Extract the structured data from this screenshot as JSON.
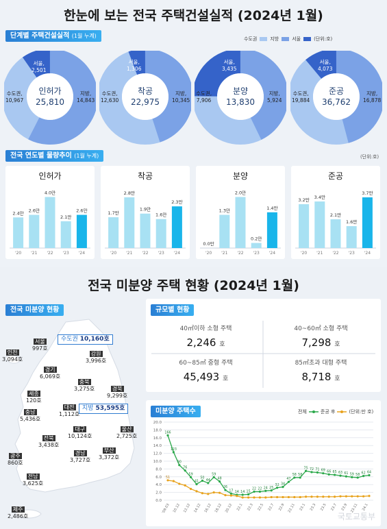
{
  "top_title": "한눈에 보는 전국 주택건설실적 (2024년 1월)",
  "stage_tag": "단계별 주택건설실적",
  "stage_tag_note": "(1월 누계)",
  "legend": {
    "items": [
      "수도권",
      "지방",
      "서울"
    ],
    "unit": "(단위:호)"
  },
  "colors": {
    "sudo": "#a9c8f1",
    "jibang": "#7ba2e6",
    "seoul": "#3563c9"
  },
  "chart_data": [
    {
      "type": "pie",
      "title": "인허가",
      "total": "25,810",
      "slices": [
        {
          "name": "수도권",
          "label": "수도권,",
          "value": 10967,
          "display": "10,967"
        },
        {
          "name": "지방",
          "label": "지방,",
          "value": 14843,
          "display": "14,843"
        },
        {
          "name": "서울",
          "label": "서울,",
          "value": 2501,
          "display": "2,501"
        }
      ]
    },
    {
      "type": "pie",
      "title": "착공",
      "total": "22,975",
      "slices": [
        {
          "name": "수도권",
          "label": "수도권,",
          "value": 12630,
          "display": "12,630"
        },
        {
          "name": "지방",
          "label": "지방,",
          "value": 10345,
          "display": "10,345"
        },
        {
          "name": "서울",
          "label": "서울,",
          "value": 1306,
          "display": "1,306"
        }
      ]
    },
    {
      "type": "pie",
      "title": "분양",
      "total": "13,830",
      "slices": [
        {
          "name": "수도권",
          "label": "수도권,",
          "value": 7906,
          "display": "7,906"
        },
        {
          "name": "지방",
          "label": "지방,",
          "value": 5924,
          "display": "5,924"
        },
        {
          "name": "서울",
          "label": "서울,",
          "value": 3435,
          "display": "3,435"
        }
      ]
    },
    {
      "type": "pie",
      "title": "준공",
      "total": "36,762",
      "slices": [
        {
          "name": "수도권",
          "label": "수도권,",
          "value": 19884,
          "display": "19,884"
        },
        {
          "name": "지방",
          "label": "지방,",
          "value": 16878,
          "display": "16,878"
        },
        {
          "name": "서울",
          "label": "서울,",
          "value": 4073,
          "display": "4,073"
        }
      ]
    },
    {
      "type": "bar",
      "title": "인허가",
      "categories": [
        "'20",
        "'21",
        "'22",
        "'23",
        "'24"
      ],
      "values": [
        2.4,
        2.6,
        4.0,
        2.1,
        2.6
      ],
      "value_labels": [
        "2.4만",
        "2.6만",
        "4.0만",
        "2.1만",
        "2.6만"
      ],
      "ylim": [
        0,
        4.4
      ]
    },
    {
      "type": "bar",
      "title": "착공",
      "categories": [
        "'20",
        "'21",
        "'22",
        "'23",
        "'24"
      ],
      "values": [
        1.7,
        2.8,
        1.9,
        1.6,
        2.3
      ],
      "value_labels": [
        "1.7만",
        "2.8만",
        "1.9만",
        "1.6만",
        "2.3만"
      ],
      "ylim": [
        0,
        3.1
      ]
    },
    {
      "type": "bar",
      "title": "분양",
      "categories": [
        "'20",
        "'21",
        "'22",
        "'23",
        "'24"
      ],
      "values": [
        0.0,
        1.3,
        2.0,
        0.2,
        1.4
      ],
      "value_labels": [
        "0.0만",
        "1.3만",
        "2.0만",
        "0.2만",
        "1.4만"
      ],
      "ylim": [
        0,
        2.2
      ]
    },
    {
      "type": "bar",
      "title": "준공",
      "categories": [
        "'20",
        "'21",
        "'22",
        "'23",
        "'24"
      ],
      "values": [
        3.2,
        3.4,
        2.1,
        1.6,
        3.7
      ],
      "value_labels": [
        "3.2만",
        "3.4만",
        "2.1만",
        "1.6만",
        "3.7만"
      ],
      "ylim": [
        0,
        4.1
      ]
    },
    {
      "type": "line",
      "title": "미분양 주택수",
      "y_ticks": [
        "0.0",
        "2.0",
        "4.0",
        "6.0",
        "8.0",
        "10.0",
        "12.0",
        "14.0",
        "16.0",
        "18.0",
        "20.0"
      ],
      "ylim": [
        0,
        20
      ],
      "x_labels": [
        "'09.03",
        "10.12",
        "12.12",
        "14.12",
        "16.12",
        "18.12",
        "20.12",
        "22.1",
        "22.3",
        "22.5",
        "22.7",
        "22.9",
        "22.11",
        "23.1",
        "23.3",
        "23.5",
        "23.7",
        "23.9",
        "23.11",
        "24.1"
      ],
      "series": [
        {
          "name": "전체",
          "color": "#2aa84a",
          "values": [
            16.6,
            12.3,
            9.0,
            7.6,
            5.9,
            4.1,
            5.0,
            4.4,
            5.9,
            4.8,
            2.6,
            1.7,
            1.4,
            1.4,
            1.5,
            2.2,
            2.2,
            2.4,
            2.5,
            3.2,
            3.4,
            4.7,
            5.8,
            5.8,
            7.5,
            7.2,
            7.1,
            6.9,
            6.6,
            6.5,
            6.3,
            6.1,
            5.9,
            5.8,
            6.2,
            6.4
          ],
          "labels": [
            "166",
            "123",
            "90",
            "76",
            "59",
            "41",
            "50",
            "44",
            "59",
            "48",
            "26",
            "17",
            "14",
            "14",
            "15",
            "22",
            "22",
            "24",
            "25",
            "32",
            "34",
            "47",
            "58",
            "58",
            "75",
            "72",
            "71",
            "69",
            "66",
            "65",
            "63",
            "61",
            "59",
            "58",
            "62",
            "64"
          ]
        },
        {
          "name": "준공 후",
          "color": "#e8a21c",
          "values": [
            5.1,
            4.9,
            4.2,
            3.8,
            2.9,
            2.3,
            1.8,
            1.6,
            2.0,
            1.9,
            1.3,
            1.2,
            1.1,
            0.7,
            0.7,
            0.7,
            0.7,
            0.7,
            0.8,
            0.8,
            0.8,
            0.8,
            0.8,
            0.8,
            0.9,
            0.9,
            0.9,
            0.9,
            0.9,
            0.9,
            1.0,
            1.0,
            1.0,
            1.0,
            1.0,
            1.1
          ],
          "labels": [
            "51",
            "",
            "",
            "",
            "",
            "",
            "",
            "",
            "",
            "",
            "",
            "",
            "",
            "",
            "",
            "",
            "",
            "",
            "",
            "",
            "",
            "",
            "",
            "",
            "",
            "",
            "",
            "",
            "",
            "",
            "",
            "",
            "",
            "",
            "",
            ""
          ]
        }
      ]
    }
  ],
  "trend_tag": "전국 연도별 물량추이",
  "trend_tag_note": "(1월 누계)",
  "trend_unit": "(단위:호)",
  "bottom_title": "전국 미분양 주택 현황 (2024년 1월)",
  "map_tag": "전국 미분양 현황",
  "regions": [
    {
      "name": "서울",
      "value": "997호"
    },
    {
      "name": "인천",
      "value": "3,094호"
    },
    {
      "name": "경기",
      "value": "6,069호"
    },
    {
      "name": "강원",
      "value": "3,996호"
    },
    {
      "name": "충북",
      "value": "3,275호"
    },
    {
      "name": "세종",
      "value": "120호"
    },
    {
      "name": "대전",
      "value": "1,112호"
    },
    {
      "name": "경북",
      "value": "9,299호"
    },
    {
      "name": "충남",
      "value": "5,436호"
    },
    {
      "name": "대구",
      "value": "10,124호"
    },
    {
      "name": "울산",
      "value": "2,725호"
    },
    {
      "name": "전북",
      "value": "3,438호"
    },
    {
      "name": "경남",
      "value": "3,727호"
    },
    {
      "name": "부산",
      "value": "3,372호"
    },
    {
      "name": "광주",
      "value": "860호"
    },
    {
      "name": "전남",
      "value": "3,625호"
    },
    {
      "name": "제주",
      "value": "2,486호"
    }
  ],
  "capital_box": {
    "label": "수도권",
    "value": "10,160호"
  },
  "local_box": {
    "label": "지방",
    "value": "53,595호"
  },
  "size_tag": "규모별 현황",
  "sizes": [
    {
      "label": "40㎡이하 소형 주택",
      "value": "2,246",
      "unit": "호"
    },
    {
      "label": "40~60㎡ 소형 주택",
      "value": "7,298",
      "unit": "호"
    },
    {
      "label": "60~85㎡ 중형 주택",
      "value": "45,493",
      "unit": "호"
    },
    {
      "label": "85㎡초과 대형 주택",
      "value": "8,718",
      "unit": "호"
    }
  ],
  "unsold_tag": "미분양 주택수",
  "unsold_unit": "(단위:만 호)",
  "watermark": "국토교통부"
}
